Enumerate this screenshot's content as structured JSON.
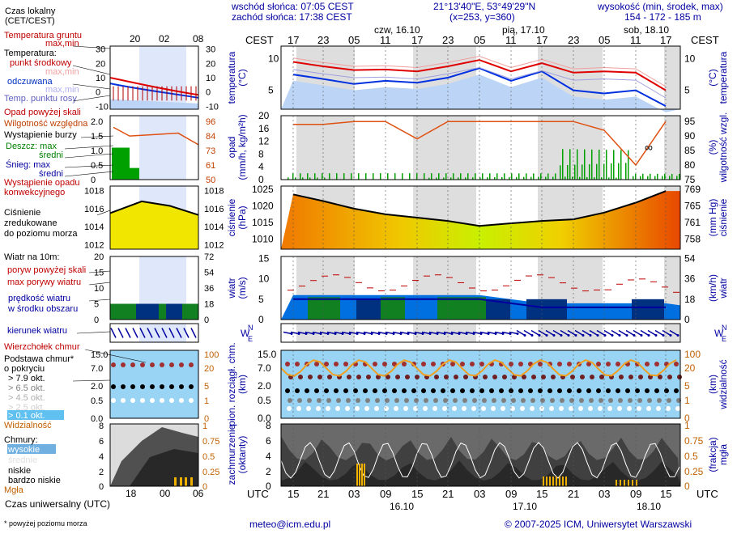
{
  "header": {
    "tz_label": "Czas lokalny\n(CET/CEST)",
    "sunrise": "wschód słońca: 07:05 CEST",
    "sunset": "zachód słońca: 17:38 CEST",
    "coords": "21°13'40\"E, 53°49'29\"N",
    "grid": "(x=253, y=360)",
    "alt_label": "wysokość (min, środek, max)",
    "alt_values": "154 - 172 - 185 m"
  },
  "top_axis": {
    "left_hours": [
      "20",
      "02",
      "08"
    ],
    "days": [
      "czw, 16.10",
      "pią, 17.10",
      "sob, 18.10"
    ],
    "hours": [
      "17",
      "23",
      "05",
      "11",
      "17",
      "23",
      "05",
      "11",
      "17",
      "23",
      "05",
      "11",
      "17"
    ],
    "tz": "CEST"
  },
  "bottom_axis": {
    "left_hours": [
      "18",
      "00",
      "06"
    ],
    "hours": [
      "15",
      "21",
      "03",
      "09",
      "15",
      "21",
      "03",
      "09",
      "15",
      "21",
      "03",
      "09",
      "15"
    ],
    "days": [
      "16.10",
      "17.10",
      "18.10"
    ],
    "tz": "UTC",
    "utc_label": "Czas uniwersalny (UTC)"
  },
  "legend": {
    "temp_ground": "Temperatura gruntu",
    "temp_ground2": "max,min",
    "temperature": "Temperatura:",
    "mid_point": "punkt środkowy",
    "maxmin": "max,min",
    "felt": "odczuwana",
    "felt_maxmin": "max,min",
    "dew": "Temp. punktu rosy",
    "precip_above": "Opad powyżej skali",
    "humidity": "Wilgotność względna",
    "storm": "Wystąpienie burzy",
    "rain_max": "Deszcz: max",
    "rain_mid": "średni",
    "snow_max": "Śnieg:   max",
    "snow_mid": "średni",
    "conv1": "Wystąpienie opadu",
    "conv2": "konwekcyjnego",
    "pressure1": "Ciśnienie",
    "pressure2": "zredukowane",
    "pressure3": "do poziomu morza",
    "wind10": "Wiatr na 10m:",
    "gust_above": "poryw powyżej skali",
    "gust_max": "max porywy wiatru",
    "wind_speed": "prędkość wiatru",
    "wind_area": "w środku obszaru",
    "wind_dir": "kierunek wiatru",
    "cloud_top": "Wierzchołek chmur",
    "cloud_base": "Podstawa chmur*",
    "cloud_cover": "o pokryciu",
    "okt79": "> 7.9 okt.",
    "okt65": "> 6.5 okt.",
    "okt45": "> 4.5 okt.",
    "okt25": "> 2.5 okt.",
    "okt01": "> 0.1 okt.",
    "visibility": "Widzialność",
    "clouds": "Chmury:",
    "high": "wysokie",
    "mid": "średnie",
    "low": "niskie",
    "very_low": "bardzo niskie",
    "fog": "Mgła",
    "footnote": "* powyżej poziomu morza"
  },
  "axis_titles": {
    "temp_l": "temperatura\n(°C)",
    "temp_r": "(°C)\ntemperatura",
    "precip_l": "opad\n(mm/h, kg/m²h)",
    "precip_r": "(%)\nwilgotność wzgl.",
    "press_l": "ciśnienie\n(hPa)",
    "press_r": "(mm Hg)\nciśnienie",
    "wind_l": "wiatr\n(m/s)",
    "wind_r": "(km/h)\nwiatr",
    "cloud_l": "pion. rozciągł. chm.\n(km)",
    "cloud_r": "(km)\nwidzialność",
    "cover_l": "zachmurzenie\n(oktanty)",
    "cover_r": "(frakcja)\nmgła"
  },
  "ticks": {
    "temp_l": [
      "10",
      "5"
    ],
    "temp_r": [
      "10",
      "5"
    ],
    "precip_l": [
      "20",
      "16",
      "12",
      "8",
      "4",
      "0"
    ],
    "precip_r": [
      "95",
      "90",
      "85",
      "80",
      "75"
    ],
    "press_l": [
      "1025",
      "1020",
      "1015",
      "1010"
    ],
    "press_r": [
      "769",
      "765",
      "761",
      "758"
    ],
    "wind_l": [
      "15",
      "10",
      "5",
      "0"
    ],
    "wind_r": [
      "54",
      "36",
      "18",
      "0"
    ],
    "cloud_l": [
      "15.0",
      "7.0",
      "2.0",
      "0.5",
      "0.0"
    ],
    "cloud_r": [
      "100",
      "20",
      "5",
      "1",
      "0"
    ],
    "cover_l": [
      "8",
      "6",
      "4",
      "2",
      "0"
    ],
    "cover_r": [
      "1",
      "0.75",
      "0.5",
      "0.25",
      "0"
    ],
    "left_temp_l": [
      "30",
      "20",
      "10",
      "0",
      "-10"
    ],
    "left_temp_r": [
      "30",
      "20",
      "10",
      "0",
      "-10"
    ],
    "left_precip_l": [
      "2.0",
      "1.5",
      "1.0",
      "0.5",
      "0"
    ],
    "left_precip_r": [
      "96",
      "84",
      "73",
      "61",
      "50"
    ],
    "left_press_l": [
      "1018",
      "1016",
      "1014",
      "1012"
    ],
    "left_press_r": [
      "1018",
      "1016",
      "1014",
      "1012"
    ],
    "left_wind_l": [
      "20",
      "15",
      "10",
      "5",
      "0"
    ],
    "left_wind_r": [
      "72",
      "54",
      "36",
      "18",
      "0"
    ],
    "left_cloud_l": [
      "15.0",
      "7.0",
      "2.0",
      "0.5",
      "0.0"
    ],
    "left_cloud_r": [
      "100",
      "20",
      "5",
      "1",
      "0"
    ],
    "left_cover_l": [
      "8",
      "6",
      "4",
      "2",
      "0"
    ],
    "left_cover_r": [
      "1",
      "0.75",
      "0.5",
      "0.25",
      "0"
    ]
  },
  "footer": {
    "email": "meteo@icm.edu.pl",
    "copyright": "© 2007-2025 ICM, Uniwersytet Warszawski"
  },
  "colors": {
    "temp": "#e00000",
    "felt": "#0030e0",
    "dew": "#a0a0e0",
    "humidity": "#e05010",
    "rain": "#00a000",
    "pressure_fill": "#f0c000",
    "wind_fill": "#0070e0",
    "wind_dark": "#003080",
    "cloud_bg": "#9ad4f5"
  },
  "chart_data": {
    "type": "line",
    "title": "",
    "series": [
      {
        "name": "temperatura",
        "x": [
          "17",
          "23",
          "05",
          "11",
          "17",
          "23",
          "05",
          "11",
          "17",
          "23",
          "05",
          "11",
          "17"
        ],
        "values": [
          9.5,
          8.8,
          8.2,
          8.3,
          8.0,
          8.8,
          9.8,
          8.0,
          9.3,
          7.8,
          8.0,
          7.8,
          5.0
        ]
      },
      {
        "name": "odczuwana",
        "x": [
          "17",
          "23",
          "05",
          "11",
          "17",
          "23",
          "05",
          "11",
          "17",
          "23",
          "05",
          "11",
          "17"
        ],
        "values": [
          7.5,
          6.8,
          6.0,
          6.5,
          6.2,
          7.0,
          8.5,
          6.5,
          8.0,
          5.0,
          4.5,
          5.0,
          2.5
        ]
      },
      {
        "name": "ciśnienie",
        "x": [
          "17",
          "23",
          "05",
          "11",
          "17",
          "23",
          "05",
          "11",
          "17",
          "23",
          "05",
          "11",
          "17"
        ],
        "values": [
          1023.5,
          1021.5,
          1019.2,
          1017.5,
          1016.5,
          1015.5,
          1014.0,
          1014.8,
          1015.5,
          1016.0,
          1018.0,
          1021.0,
          1024.5
        ]
      },
      {
        "name": "wilgotność wzgl.",
        "x": [
          "17",
          "23",
          "05",
          "11",
          "17",
          "23",
          "05",
          "11",
          "17",
          "23",
          "05",
          "11",
          "17"
        ],
        "values": [
          94,
          94,
          95,
          95,
          89,
          95,
          95,
          95,
          95,
          95,
          92,
          80,
          95
        ]
      },
      {
        "name": "prędkość wiatru",
        "x": [
          "17",
          "23",
          "05",
          "11",
          "17",
          "23",
          "05",
          "11",
          "17",
          "23",
          "05",
          "11",
          "17"
        ],
        "values": [
          5,
          5,
          5,
          5,
          5,
          5,
          5,
          4,
          3,
          3,
          3,
          3,
          3
        ]
      }
    ]
  }
}
